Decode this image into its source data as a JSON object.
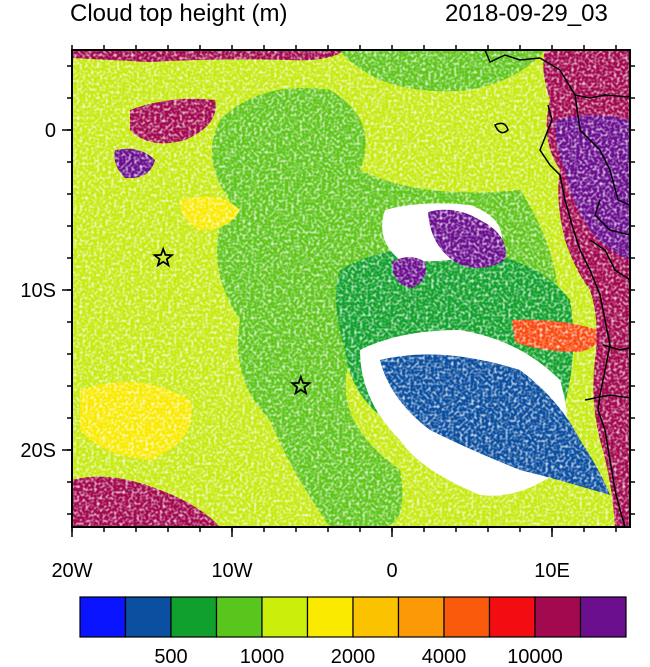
{
  "title_left": "Cloud top height (m)",
  "title_right": "2018-09-29_03",
  "map": {
    "x_ticks": [
      "20W",
      "10W",
      "0",
      "10E"
    ],
    "y_ticks": [
      "0",
      "10S",
      "20S"
    ],
    "markers": [
      {
        "name": "star-marker-1",
        "lon": -14.3,
        "lat": -8.0
      },
      {
        "name": "star-marker-2",
        "lon": -5.7,
        "lat": -16.0
      }
    ]
  },
  "colorbar": {
    "colors": [
      "#0a14ff",
      "#0b4fa0",
      "#10a02d",
      "#58c61c",
      "#cbef0b",
      "#f9ea00",
      "#fbc200",
      "#fb9a06",
      "#fa5a0c",
      "#f30c12",
      "#a3094f",
      "#6b0f8f"
    ],
    "labels": [
      "500",
      "1000",
      "2000",
      "4000",
      "10000"
    ]
  },
  "palette": {
    "ocean_light": "#c6ea12",
    "ocean_green": "#60c61c",
    "deep_green": "#13a22d",
    "land_purple": "#a3094f",
    "violet": "#6b0f8f",
    "clear": "#ffffff",
    "orange_red": "#fb4a10",
    "blue": "#0a14ff",
    "dark_blue": "#0b4fa0",
    "yellow": "#f9ea00",
    "orange": "#fbc200"
  }
}
